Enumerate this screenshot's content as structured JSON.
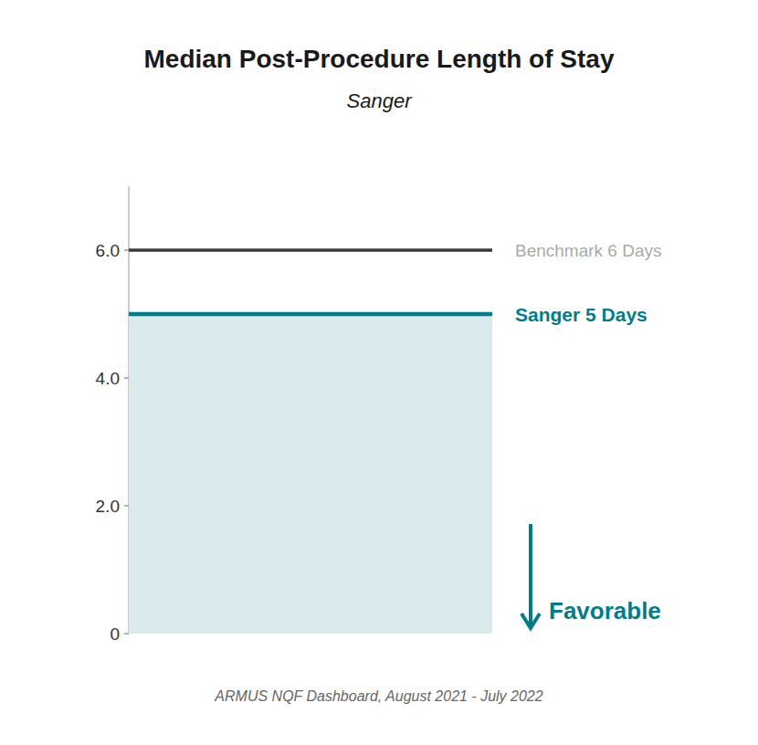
{
  "chart_data": {
    "type": "bar",
    "title": "Median Post-Procedure Length of Stay",
    "subtitle": "Sanger",
    "values": [
      5
    ],
    "color": "#daeaed",
    "edge_color": "#007d8a",
    "bar_label": "Sanger 5 Days",
    "benchmark": {
      "value": 6,
      "label": "Benchmark 6 Days",
      "color": "#3a3a3a",
      "label_color": "#aaaaaa"
    },
    "favorable_label": "Favorable",
    "favorable_color": "#007d8a",
    "footnote": "ARMUS NQF Dashboard, August 2021 - July 2022",
    "background_color": "#ffffff",
    "ylim": [
      0,
      7
    ],
    "yticks": [
      0,
      {
        "value": 2,
        "label": "2.0"
      },
      {
        "value": 4,
        "label": "4.0"
      },
      {
        "value": 6,
        "label": "6.0"
      }
    ],
    "grid": false,
    "tick_labels": "y"
  }
}
